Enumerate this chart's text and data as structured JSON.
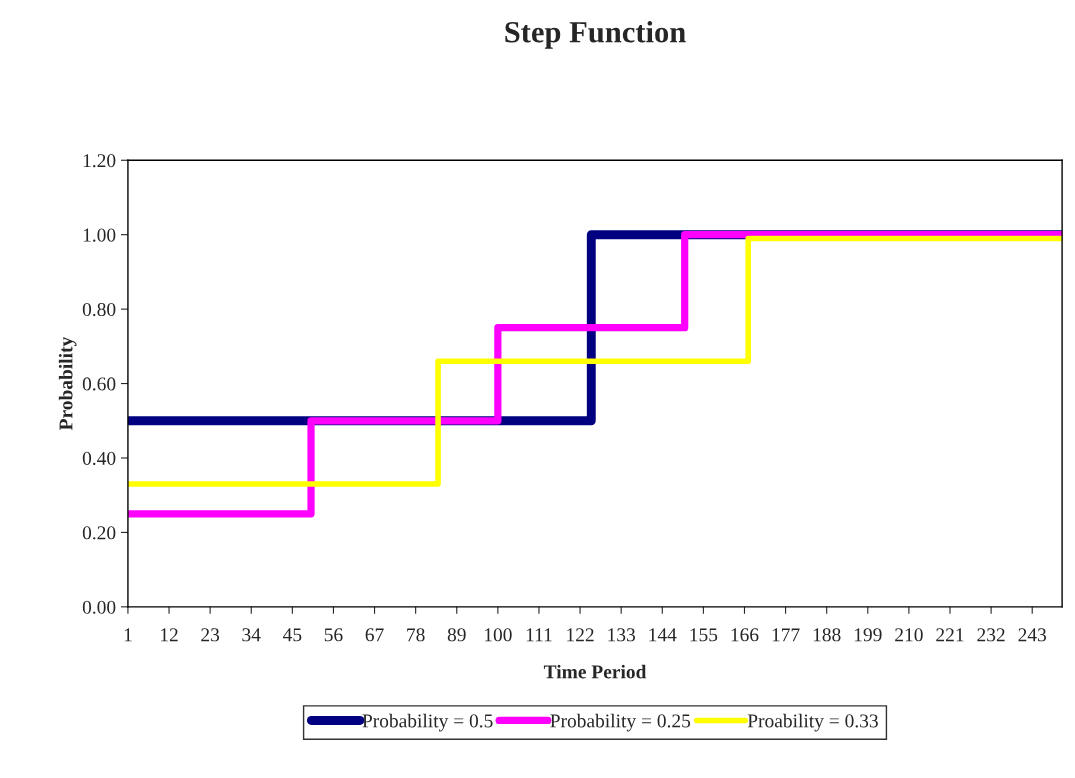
{
  "chart_data": {
    "type": "step",
    "title": "Step Function",
    "xlabel": "Time Period",
    "ylabel": "Probability",
    "xlim": [
      1,
      251
    ],
    "xticks": [
      1,
      12,
      23,
      34,
      45,
      56,
      67,
      78,
      89,
      100,
      111,
      122,
      133,
      144,
      155,
      166,
      177,
      188,
      199,
      210,
      221,
      232,
      243
    ],
    "ylim": [
      0,
      1.2
    ],
    "yticks": [
      {
        "value": 0,
        "label": "0.00"
      },
      {
        "value": 0.2,
        "label": "0.20"
      },
      {
        "value": 0.4,
        "label": "0.40"
      },
      {
        "value": 0.6,
        "label": "0.60"
      },
      {
        "value": 0.8,
        "label": "0.80"
      },
      {
        "value": 1.0,
        "label": "1.00"
      },
      {
        "value": 1.2,
        "label": "1.20"
      }
    ],
    "grid": false,
    "legend": "bottom",
    "marker": "none",
    "line_style": "solid",
    "series": [
      {
        "name": "Probability = 0.5",
        "color": "#000080",
        "x": [
          1,
          125,
          251
        ],
        "values": [
          0.5,
          1.0,
          1.0
        ]
      },
      {
        "name": "Probability = 0.25",
        "color": "#ff00ff",
        "x": [
          1,
          50,
          100,
          150,
          251
        ],
        "values": [
          0.25,
          0.5,
          0.75,
          1.0,
          1.0
        ]
      },
      {
        "name": "Proability = 0.33",
        "color": "#ffff00",
        "x": [
          1,
          84,
          167,
          251
        ],
        "values": [
          0.33,
          0.66,
          0.99,
          0.99
        ]
      }
    ]
  }
}
